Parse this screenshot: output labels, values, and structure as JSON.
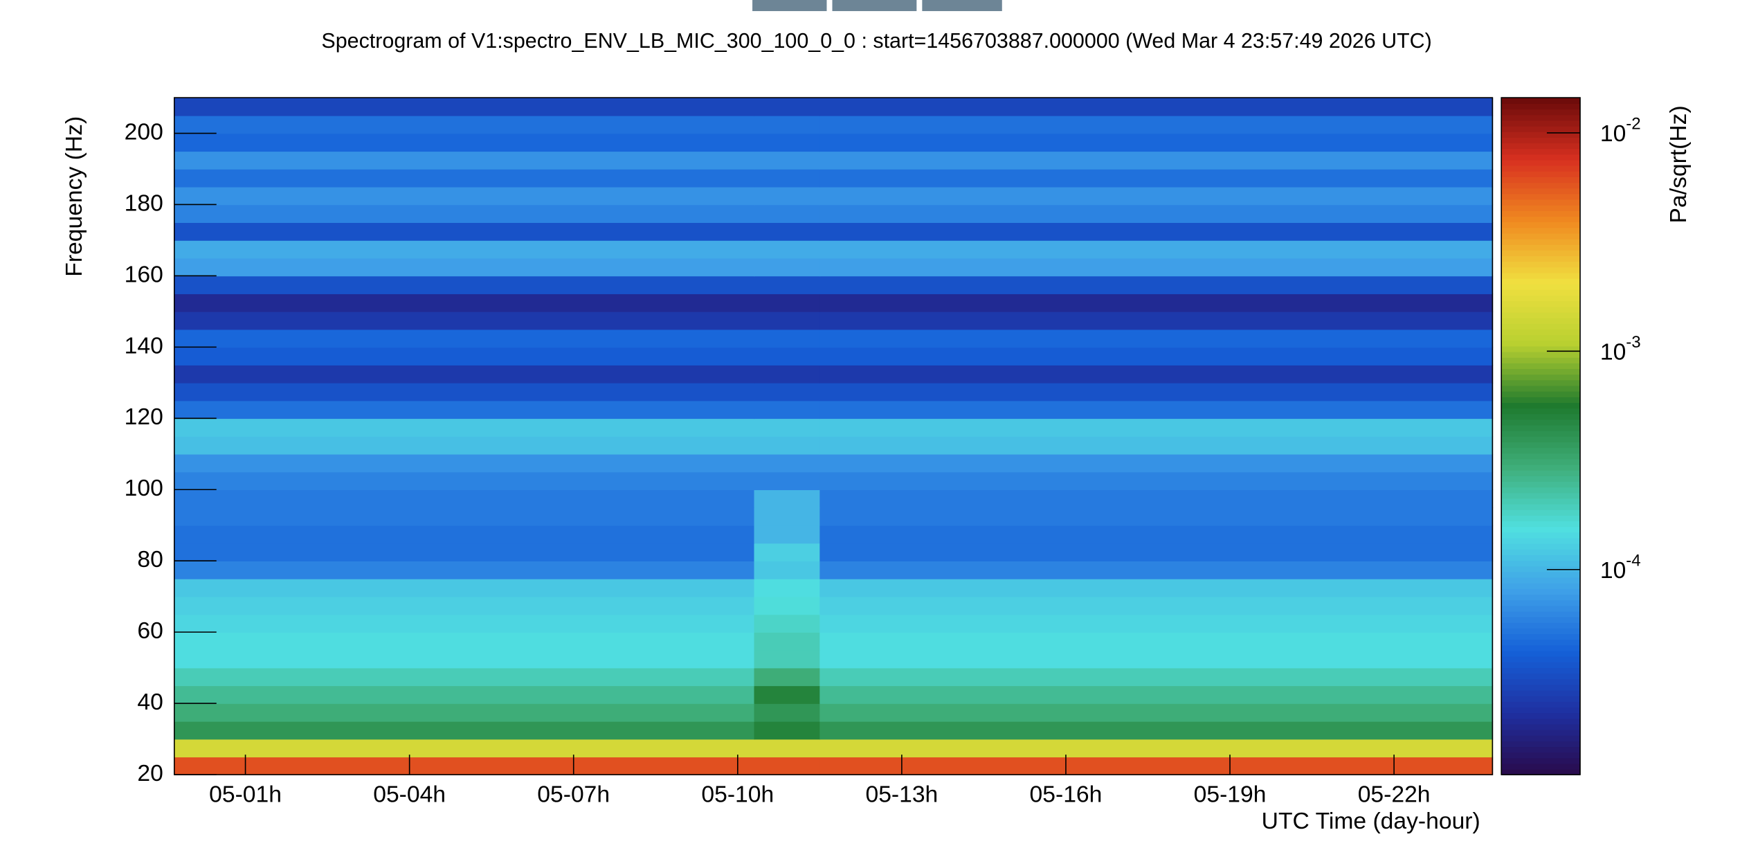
{
  "chart_data": {
    "type": "heatmap",
    "title": "Spectrogram of V1:spectro_ENV_LB_MIC_300_100_0_0 : start=1456703887.000000 (Wed Mar  4 23:57:49 2026 UTC)",
    "x_label": "UTC Time (day-hour)",
    "y_label": "Frequency (Hz)",
    "z_label": "Pa/sqrt(Hz)",
    "xlim": [
      -0.3,
      23.8
    ],
    "ylim": [
      20,
      210
    ],
    "zlim": [
      1.15e-05,
      0.0145
    ],
    "zscale": "log",
    "xticks": [
      {
        "value": 1,
        "label": "05-01h"
      },
      {
        "value": 4,
        "label": "05-04h"
      },
      {
        "value": 7,
        "label": "05-07h"
      },
      {
        "value": 10,
        "label": "05-10h"
      },
      {
        "value": 13,
        "label": "05-13h"
      },
      {
        "value": 16,
        "label": "05-16h"
      },
      {
        "value": 19,
        "label": "05-19h"
      },
      {
        "value": 22,
        "label": "05-22h"
      }
    ],
    "yticks": [
      20,
      40,
      60,
      80,
      100,
      120,
      140,
      160,
      180,
      200
    ],
    "zticks": [
      {
        "value": 0.01,
        "label": "10",
        "exponent": "-2"
      },
      {
        "value": 0.001,
        "label": "10",
        "exponent": "-3"
      },
      {
        "value": 0.0001,
        "label": "10",
        "exponent": "-4"
      }
    ],
    "colormap": [
      "#2a0a4a",
      "#1f2fa0",
      "#1560d8",
      "#3fa0e8",
      "#50e0e0",
      "#3fae7a",
      "#1e7a2e",
      "#b8d030",
      "#f0e040",
      "#f08a20",
      "#d83020",
      "#6a0a0a"
    ],
    "xbins": [
      -0.3,
      10.3,
      11.5,
      23.8
    ],
    "ybins": [
      20,
      25,
      30,
      35,
      40,
      45,
      50,
      55,
      60,
      65,
      70,
      75,
      80,
      85,
      90,
      95,
      100,
      105,
      110,
      115,
      120,
      125,
      130,
      135,
      140,
      145,
      150,
      155,
      160,
      165,
      170,
      175,
      180,
      185,
      190,
      195,
      200,
      205,
      210
    ],
    "z": [
      [
        0.006,
        0.006,
        0.006
      ],
      [
        0.0015,
        0.0015,
        0.0015
      ],
      [
        0.0004,
        0.0005,
        0.0004
      ],
      [
        0.0003,
        0.0004,
        0.0003
      ],
      [
        0.00025,
        0.0005,
        0.00025
      ],
      [
        0.0002,
        0.0003,
        0.0002
      ],
      [
        0.00015,
        0.0002,
        0.00015
      ],
      [
        0.00015,
        0.0002,
        0.00015
      ],
      [
        0.00014,
        0.00018,
        0.00014
      ],
      [
        0.00013,
        0.00016,
        0.00013
      ],
      [
        0.00012,
        0.00015,
        0.00012
      ],
      [
        6e-05,
        0.00012,
        6e-05
      ],
      [
        5e-05,
        0.00013,
        5e-05
      ],
      [
        5e-05,
        0.0001,
        5e-05
      ],
      [
        5.5e-05,
        0.0001,
        5.5e-05
      ],
      [
        5.5e-05,
        0.0001,
        5.5e-05
      ],
      [
        6e-05,
        6e-05,
        6e-05
      ],
      [
        7e-05,
        7e-05,
        7e-05
      ],
      [
        0.00011,
        0.00011,
        0.00011
      ],
      [
        0.00012,
        0.00012,
        0.00012
      ],
      [
        5e-05,
        5e-05,
        5e-05
      ],
      [
        3.5e-05,
        3.5e-05,
        3.5e-05
      ],
      [
        2.5e-05,
        2.5e-05,
        2.5e-05
      ],
      [
        4e-05,
        4e-05,
        4e-05
      ],
      [
        4.5e-05,
        4.5e-05,
        4.5e-05
      ],
      [
        2.5e-05,
        2.5e-05,
        2.5e-05
      ],
      [
        2e-05,
        2e-05,
        2e-05
      ],
      [
        3.5e-05,
        3.5e-05,
        3.5e-05
      ],
      [
        8e-05,
        8e-05,
        8e-05
      ],
      [
        9e-05,
        9e-05,
        9e-05
      ],
      [
        3.5e-05,
        3.5e-05,
        3.5e-05
      ],
      [
        6e-05,
        6e-05,
        6e-05
      ],
      [
        7e-05,
        7e-05,
        7e-05
      ],
      [
        5e-05,
        5e-05,
        5e-05
      ],
      [
        7e-05,
        7e-05,
        7e-05
      ],
      [
        4.5e-05,
        4.5e-05,
        4.5e-05
      ],
      [
        5e-05,
        5e-05,
        5e-05
      ],
      [
        3e-05,
        3e-05,
        3e-05
      ]
    ]
  }
}
